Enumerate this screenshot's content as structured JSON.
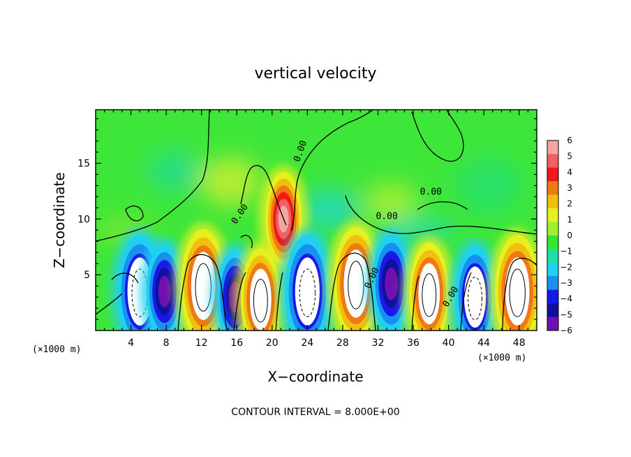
{
  "chart_data": {
    "type": "heatmap",
    "title": "vertical velocity",
    "xlabel": "X−coordinate",
    "ylabel": "Z−coordinate",
    "x_unit_label": "(×1000 m)",
    "xlim": [
      0,
      50
    ],
    "ylim": [
      0,
      19.8
    ],
    "x_ticks": [
      4,
      8,
      12,
      16,
      20,
      24,
      28,
      32,
      36,
      40,
      44,
      48
    ],
    "x_tick_labels": [
      "4",
      "8",
      "12",
      "16",
      "20",
      "24",
      "28",
      "32",
      "36",
      "40",
      "44",
      "48"
    ],
    "y_ticks": [
      5,
      10,
      15
    ],
    "y_tick_labels": [
      "5",
      "10",
      "15"
    ],
    "contour_label": "0.00",
    "contour_interval_text": "CONTOUR INTERVAL = 8.000E+00",
    "colorbar": {
      "levels": [
        6,
        5,
        4,
        3,
        2,
        1,
        0,
        -1,
        -2,
        -3,
        -4,
        -5,
        -6
      ],
      "labels": [
        "6",
        "5",
        "4",
        "3",
        "2",
        "1",
        "0",
        "−1",
        "−2",
        "−3",
        "−4",
        "−5",
        "−6"
      ],
      "colors": [
        "#f4a6a6",
        "#f06060",
        "#f01818",
        "#f07a10",
        "#f0c010",
        "#e6f020",
        "#9cf030",
        "#30e830",
        "#20e0a0",
        "#20d0f0",
        "#1890f0",
        "#1818e8",
        "#1010a0",
        "#7010b0"
      ]
    },
    "cells": [
      {
        "x": 5.0,
        "z": 3.5,
        "w": -7.5
      },
      {
        "x": 7.8,
        "z": 3.5,
        "w": -5.0
      },
      {
        "x": 12.2,
        "z": 4.0,
        "w": 7.5
      },
      {
        "x": 15.8,
        "z": 3.0,
        "w": -5.0
      },
      {
        "x": 18.7,
        "z": 2.8,
        "w": 6.0
      },
      {
        "x": 21.3,
        "z": 10.0,
        "w": 5.0
      },
      {
        "x": 24.0,
        "z": 3.5,
        "w": -7.5
      },
      {
        "x": 29.5,
        "z": 4.2,
        "w": 7.5
      },
      {
        "x": 33.5,
        "z": 4.2,
        "w": -5.5
      },
      {
        "x": 37.8,
        "z": 3.3,
        "w": 6.0
      },
      {
        "x": 43.0,
        "z": 3.0,
        "w": -6.0
      },
      {
        "x": 47.8,
        "z": 3.5,
        "w": 7.5
      }
    ]
  }
}
